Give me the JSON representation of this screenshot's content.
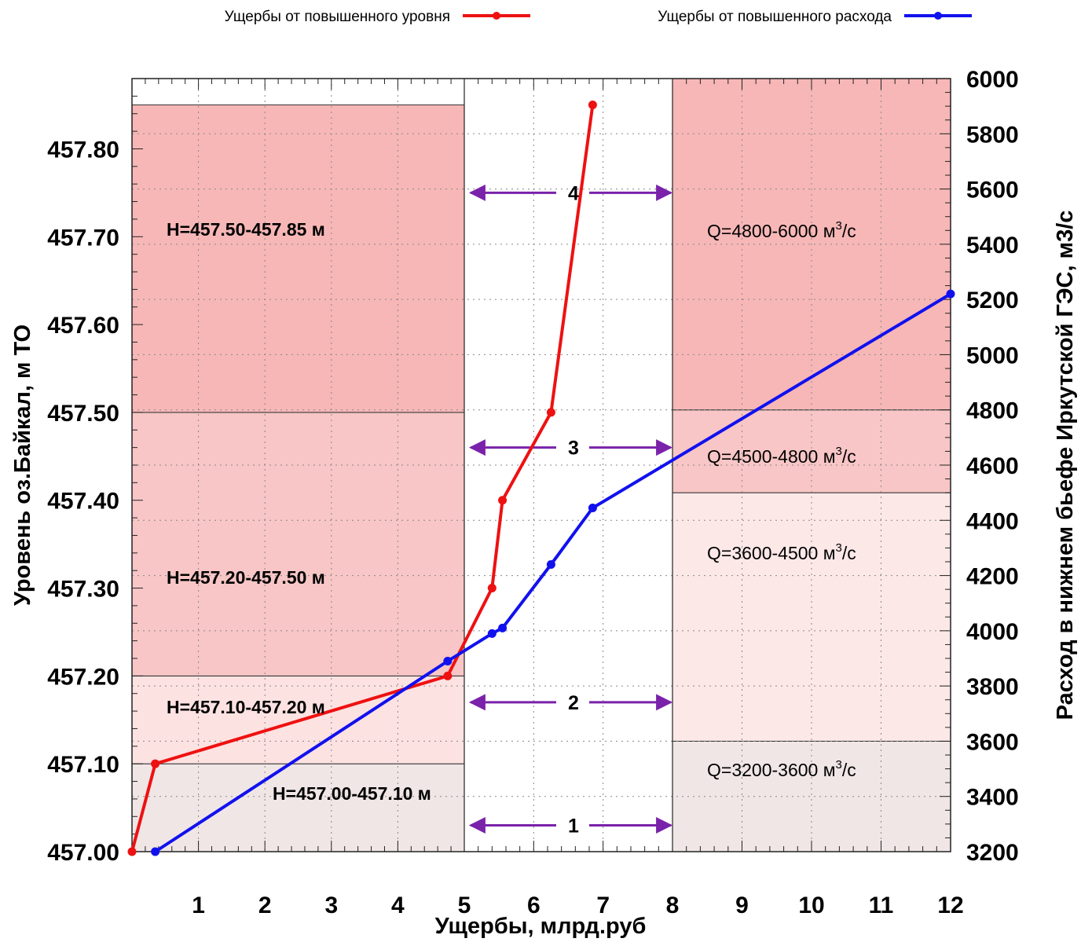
{
  "chart_data": {
    "type": "line",
    "x_axis": {
      "label": "Ущербы, млрд.руб",
      "ticks": [
        "1",
        "2",
        "3",
        "4",
        "5",
        "6",
        "7",
        "8",
        "9",
        "10",
        "11",
        "12"
      ],
      "segments": [
        {
          "from": 0,
          "to": 5,
          "unit_min": 0,
          "unit_max": 5
        },
        {
          "from": 5,
          "to": 8,
          "unit_min": 5,
          "unit_max": 8
        },
        {
          "from": 8,
          "to": 12,
          "unit_min": 8,
          "unit_max": 12
        }
      ]
    },
    "y_left": {
      "label": "Уровень оз.Байкал, м ТО",
      "range": [
        457.0,
        457.88
      ],
      "ticks": [
        "457.00",
        "457.10",
        "457.20",
        "457.30",
        "457.40",
        "457.50",
        "457.60",
        "457.70",
        "457.80"
      ],
      "tick_values": [
        457.0,
        457.1,
        457.2,
        457.3,
        457.4,
        457.5,
        457.6,
        457.7,
        457.8
      ]
    },
    "y_right": {
      "label": "Расход в нижнем бьефе Иркутской ГЭС, м3/с",
      "range": [
        3200,
        6000
      ],
      "ticks": [
        "3200",
        "3400",
        "3600",
        "3800",
        "4000",
        "4200",
        "4400",
        "4600",
        "4800",
        "5000",
        "5200",
        "5400",
        "5600",
        "5800",
        "6000"
      ],
      "tick_values": [
        3200,
        3400,
        3600,
        3800,
        4000,
        4200,
        4400,
        4600,
        4800,
        5000,
        5200,
        5400,
        5600,
        5800,
        6000
      ]
    },
    "grid": true,
    "legend_position": "top",
    "series": [
      {
        "name": "Ущербы от повышенного уровня",
        "axis": "left",
        "color": "#ee1111",
        "x": [
          0.0,
          0.35,
          4.75,
          5.4,
          5.55,
          6.25,
          6.85
        ],
        "y": [
          457.0,
          457.1,
          457.2,
          457.3,
          457.4,
          457.5,
          457.85
        ]
      },
      {
        "name": "Ущербы от повышенного расхода",
        "axis": "right",
        "color": "#1111ee",
        "x": [
          0.35,
          4.75,
          5.4,
          5.55,
          6.25,
          6.85,
          12.0
        ],
        "y": [
          3200,
          3890,
          3990,
          4010,
          4240,
          4445,
          5220
        ]
      }
    ],
    "level_zones": [
      {
        "label": "H=457.00-457.10 м",
        "from": 457.0,
        "to": 457.1,
        "color": "#f0e6e6"
      },
      {
        "label": "H=457.10-457.20 м",
        "from": 457.1,
        "to": 457.2,
        "color": "#fde2e2"
      },
      {
        "label": "H=457.20-457.50 м",
        "from": 457.2,
        "to": 457.5,
        "color": "#f8c6c6"
      },
      {
        "label": "H=457.50-457.85 м",
        "from": 457.5,
        "to": 457.85,
        "color": "#f7b7b7"
      }
    ],
    "flow_zones": [
      {
        "label": "Q=3200-3600 м",
        "sup": "3",
        "tail": "/с",
        "from": 3200,
        "to": 3600,
        "color": "#f0e6e6"
      },
      {
        "label": "Q=3600-4500 м",
        "sup": "3",
        "tail": "/с",
        "from": 3600,
        "to": 4500,
        "color": "#fde8e8"
      },
      {
        "label": "Q=4500-4800 м",
        "sup": "3",
        "tail": "/с",
        "from": 4500,
        "to": 4800,
        "color": "#f8c6c6"
      },
      {
        "label": "Q=4800-6000 м",
        "sup": "3",
        "tail": "/с",
        "from": 4800,
        "to": 6000,
        "color": "#f7b7b7"
      }
    ],
    "correspondence_arrows": [
      {
        "label": "1",
        "level": 457.03
      },
      {
        "label": "2",
        "level": 457.17
      },
      {
        "label": "3",
        "level": 457.46
      },
      {
        "label": "4",
        "level": 457.75
      }
    ],
    "arrow_color": "#7a22aa"
  }
}
